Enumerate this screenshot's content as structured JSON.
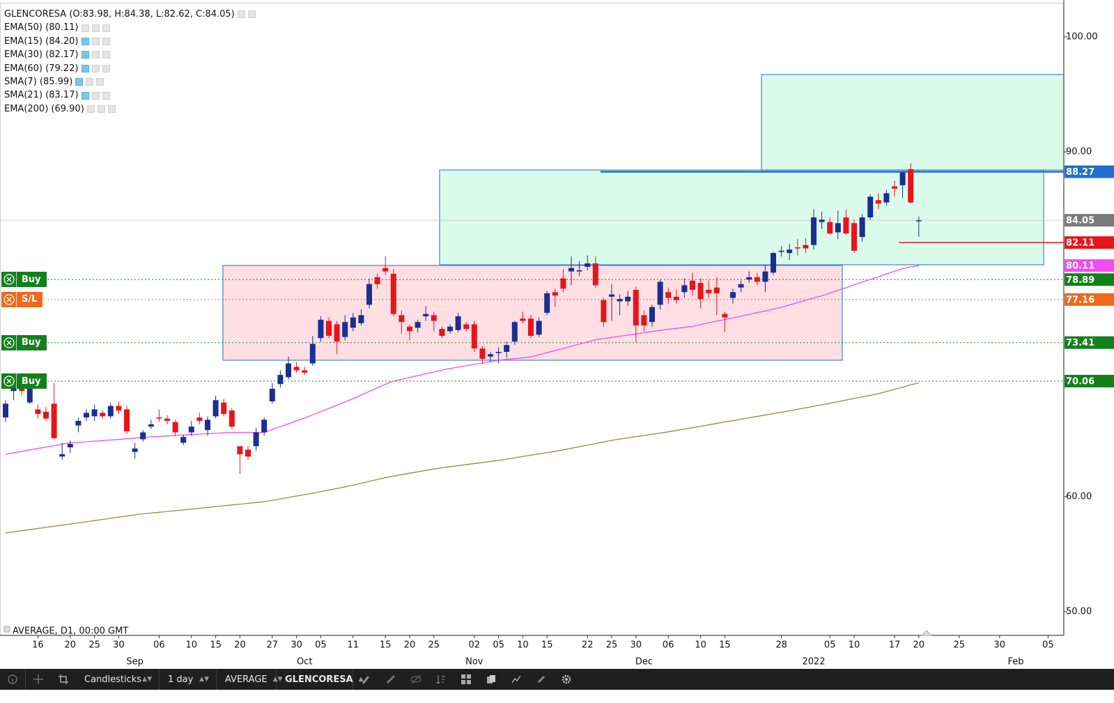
{
  "header": {
    "symbol_line": "GLENCORESA (O:83.98, H:84.38, L:82.62, C:84.05)",
    "indicators": [
      "EMA(50) (80.11)",
      "EMA(15) (84.20)",
      "EMA(30) (82.17)",
      "EMA(60) (79.22)",
      "SMA(7) (85.99)",
      "SMA(21) (83.17)",
      "EMA(200) (69.90)"
    ]
  },
  "chart_data": {
    "type": "candlestick",
    "categories": [
      null,
      null,
      null,
      null,
      "16",
      null,
      null,
      null,
      "20",
      null,
      null,
      "25",
      null,
      null,
      "30",
      null,
      null,
      null,
      null,
      "06",
      null,
      null,
      null,
      "10",
      null,
      null,
      "15",
      null,
      null,
      "20",
      null,
      null,
      null,
      "27",
      null,
      null,
      "30",
      null,
      null,
      "05",
      null,
      null,
      null,
      "11",
      null,
      null,
      null,
      "15",
      null,
      null,
      "20",
      null,
      null,
      "25",
      null,
      null,
      null,
      null,
      "02",
      null,
      null,
      "05",
      null,
      null,
      "10",
      null,
      null,
      "15",
      null,
      null,
      null,
      null,
      "22",
      null,
      null,
      "25",
      null,
      null,
      "30",
      null,
      null,
      null,
      "06",
      null,
      null,
      null,
      "10",
      null,
      null,
      "15",
      null,
      null,
      null,
      null,
      null,
      null,
      "28",
      null,
      null,
      null,
      null,
      null,
      "05",
      null,
      null,
      "10",
      null,
      null,
      null,
      null,
      "17",
      null,
      null,
      "20",
      null,
      null,
      null,
      null,
      "25",
      null,
      null,
      null,
      null,
      "30",
      null,
      null,
      null,
      null,
      null,
      "05"
    ],
    "month_labels": [
      null,
      null,
      null,
      null,
      null,
      null,
      null,
      null,
      null,
      null,
      null,
      null,
      null,
      null,
      null,
      null,
      "Sep",
      null,
      null,
      null,
      null,
      null,
      null,
      null,
      null,
      null,
      null,
      null,
      null,
      null,
      null,
      null,
      null,
      null,
      null,
      null,
      null,
      "Oct",
      null,
      null,
      null,
      null,
      null,
      null,
      null,
      null,
      null,
      null,
      null,
      null,
      null,
      null,
      null,
      null,
      null,
      null,
      null,
      null,
      "Nov",
      null,
      null,
      null,
      null,
      null,
      null,
      null,
      null,
      null,
      null,
      null,
      null,
      null,
      null,
      null,
      null,
      null,
      null,
      null,
      null,
      "Dec",
      null,
      null,
      null,
      null,
      null,
      null,
      null,
      null,
      null,
      null,
      null,
      null,
      null,
      null,
      null,
      null,
      null,
      null,
      null,
      null,
      "2022",
      null,
      null,
      null,
      null,
      null,
      null,
      null,
      null,
      null,
      null,
      null,
      null,
      null,
      null,
      null,
      null,
      null,
      null,
      null,
      null,
      null,
      null,
      null,
      null,
      "Feb",
      null,
      null,
      null,
      null
    ],
    "open": [
      66.9,
      69.2,
      69.5,
      68.2,
      67.6,
      67.4,
      68.1,
      63.5,
      64.3,
      66.2,
      66.9,
      67.0,
      67.3,
      67.0,
      67.9,
      67.6,
      63.9,
      65.0,
      66.1,
      66.9,
      66.8,
      66.5,
      64.7,
      65.6,
      66.9,
      65.8,
      67.0,
      68.2,
      67.5,
      64.4,
      64.1,
      64.4,
      65.6,
      68.3,
      69.8,
      70.4,
      71.3,
      71.0,
      71.6,
      73.8,
      75.3,
      75.0,
      73.9,
      74.7,
      75.1,
      76.7,
      79.1,
      79.9,
      79.4,
      75.8,
      74.8,
      74.7,
      75.7,
      75.8,
      74.6,
      74.4,
      74.5,
      75.0,
      75.0,
      72.9,
      72.2,
      72.5,
      72.6,
      73.5,
      75.5,
      75.5,
      74.1,
      76.0,
      77.8,
      79.0,
      79.6,
      79.6,
      80.0,
      80.3,
      77.1,
      77.4,
      77.0,
      77.0,
      78.0,
      75.8,
      75.2,
      76.7,
      77.8,
      77.4,
      77.8,
      78.8,
      78.6,
      78.0,
      78.2,
      75.9,
      77.3,
      78.2,
      78.9,
      79.1,
      78.7,
      79.5,
      81.3,
      81.2,
      81.7,
      81.9,
      81.9,
      83.9,
      83.9,
      83.0,
      84.3,
      83.8,
      82.6,
      84.3,
      85.8,
      85.6,
      87.0,
      87.1,
      88.5,
      83.98,
      null,
      null,
      null,
      null,
      null,
      null,
      null,
      null,
      null,
      null,
      null,
      null,
      null,
      null,
      null,
      null
    ],
    "high": [
      68.4,
      70.2,
      69.8,
      69.9,
      68.0,
      67.8,
      69.9,
      64.7,
      64.9,
      66.9,
      67.6,
      68.0,
      67.5,
      68.2,
      68.3,
      67.9,
      64.7,
      65.8,
      66.7,
      67.6,
      67.1,
      66.7,
      65.4,
      66.6,
      67.3,
      67.0,
      68.8,
      68.5,
      67.7,
      64.4,
      64.4,
      66.0,
      66.9,
      69.9,
      71.0,
      72.2,
      71.7,
      71.3,
      74.0,
      75.7,
      75.6,
      75.3,
      75.8,
      76.0,
      76.3,
      79.0,
      79.4,
      80.9,
      79.8,
      76.2,
      75.0,
      75.4,
      76.6,
      76.1,
      74.8,
      75.0,
      76.0,
      75.2,
      75.3,
      73.1,
      72.6,
      73.0,
      73.5,
      75.3,
      76.1,
      75.8,
      75.6,
      77.9,
      78.1,
      79.8,
      80.9,
      80.5,
      81.0,
      80.9,
      77.3,
      78.5,
      77.6,
      77.9,
      78.3,
      76.2,
      76.7,
      78.9,
      78.2,
      78.0,
      79.0,
      79.5,
      79.0,
      78.8,
      79.1,
      76.1,
      78.1,
      78.8,
      79.6,
      79.5,
      80.1,
      81.3,
      81.8,
      82.0,
      82.4,
      82.5,
      85.0,
      84.8,
      84.3,
      84.9,
      85.0,
      84.1,
      84.6,
      86.3,
      86.4,
      86.7,
      87.5,
      88.3,
      89.0,
      84.38,
      null,
      null,
      null,
      null,
      null,
      null,
      null,
      null,
      null,
      null,
      null,
      null,
      null,
      null,
      null,
      null
    ],
    "low": [
      66.5,
      68.4,
      68.8,
      68.1,
      66.8,
      66.6,
      65.0,
      63.2,
      63.8,
      65.6,
      66.6,
      66.6,
      66.8,
      66.8,
      67.2,
      65.5,
      63.3,
      64.8,
      65.9,
      66.5,
      66.3,
      65.3,
      64.5,
      65.3,
      66.3,
      65.3,
      66.8,
      67.0,
      65.9,
      62.0,
      63.2,
      64.0,
      65.3,
      68.1,
      69.5,
      70.2,
      70.8,
      70.6,
      71.4,
      73.5,
      73.8,
      72.4,
      73.6,
      74.4,
      74.9,
      76.4,
      78.1,
      79.3,
      75.7,
      74.2,
      73.6,
      74.3,
      75.3,
      74.4,
      73.8,
      74.2,
      74.3,
      74.4,
      72.6,
      71.6,
      71.7,
      71.6,
      72.1,
      73.2,
      75.1,
      73.8,
      73.9,
      75.8,
      76.5,
      77.8,
      78.4,
      79.2,
      79.7,
      78.2,
      74.8,
      75.3,
      75.8,
      76.6,
      73.4,
      74.4,
      74.8,
      76.3,
      76.8,
      76.8,
      77.3,
      77.5,
      76.4,
      77.3,
      75.8,
      74.3,
      76.8,
      77.8,
      78.6,
      78.4,
      77.8,
      79.3,
      80.9,
      80.6,
      81.0,
      81.2,
      81.5,
      83.3,
      82.8,
      82.4,
      82.8,
      81.2,
      82.2,
      84.1,
      85.0,
      85.3,
      86.1,
      86.0,
      85.5,
      82.62,
      null,
      null,
      null,
      null,
      null,
      null,
      null,
      null,
      null,
      null,
      null,
      null,
      null,
      null,
      null,
      null
    ],
    "close": [
      68.1,
      69.5,
      69.2,
      69.4,
      67.2,
      66.8,
      65.1,
      63.7,
      64.6,
      66.6,
      67.3,
      67.6,
      67.0,
      67.9,
      67.5,
      65.7,
      64.2,
      65.6,
      66.3,
      66.8,
      66.6,
      65.6,
      65.2,
      66.1,
      66.6,
      66.7,
      68.4,
      67.2,
      66.1,
      63.7,
      63.5,
      65.6,
      66.7,
      69.4,
      70.6,
      71.6,
      71.0,
      70.8,
      73.3,
      75.4,
      74.0,
      73.5,
      75.2,
      75.6,
      75.8,
      78.5,
      78.5,
      79.6,
      75.9,
      75.2,
      74.4,
      75.2,
      75.9,
      75.3,
      74.0,
      74.8,
      75.7,
      74.6,
      72.9,
      72.0,
      72.4,
      72.6,
      73.2,
      75.2,
      75.3,
      74.0,
      75.3,
      77.7,
      77.5,
      78.1,
      79.9,
      79.7,
      80.3,
      78.4,
      75.2,
      77.6,
      77.2,
      77.4,
      74.9,
      74.9,
      76.5,
      78.7,
      77.3,
      77.1,
      78.4,
      78.0,
      77.2,
      77.7,
      77.7,
      75.6,
      77.8,
      78.5,
      79.1,
      78.7,
      79.6,
      81.2,
      81.4,
      81.5,
      81.6,
      81.6,
      84.3,
      84.1,
      82.9,
      83.8,
      82.9,
      81.4,
      84.3,
      86.1,
      85.5,
      86.4,
      86.8,
      88.2,
      85.6,
      84.05,
      null,
      null,
      null,
      null,
      null,
      null,
      null,
      null,
      null,
      null,
      null,
      null,
      null,
      null,
      null,
      null
    ],
    "up_color": "#1a2f8f",
    "down_color": "#e8141c",
    "lines": [
      {
        "color": "#f04cf0",
        "values": [
          63.7,
          63.83,
          63.95,
          64.08,
          64.2,
          64.33,
          64.45,
          64.58,
          64.7,
          64.73,
          64.78,
          64.84,
          64.89,
          64.94,
          64.99,
          65.05,
          65.1,
          65.17,
          65.22,
          65.25,
          65.29,
          65.33,
          65.37,
          65.41,
          65.45,
          65.49,
          65.52,
          65.56,
          65.6,
          65.6,
          65.6,
          65.6,
          65.6,
          65.85,
          66.1,
          66.35,
          66.6,
          66.85,
          67.13,
          67.41,
          67.69,
          67.97,
          68.25,
          68.54,
          68.85,
          69.17,
          69.48,
          69.79,
          70.06,
          70.22,
          70.38,
          70.54,
          70.7,
          70.86,
          71.02,
          71.16,
          71.28,
          71.4,
          71.52,
          71.63,
          71.75,
          71.87,
          71.96,
          72.02,
          72.08,
          72.17,
          72.35,
          72.54,
          72.72,
          72.91,
          73.09,
          73.28,
          73.46,
          73.65,
          73.76,
          73.86,
          73.96,
          74.06,
          74.16,
          74.26,
          74.38,
          74.48,
          74.57,
          74.65,
          74.74,
          74.82,
          74.99,
          75.13,
          75.28,
          75.42,
          75.56,
          75.71,
          75.86,
          76.02,
          76.17,
          76.32,
          76.48,
          76.68,
          76.89,
          77.09,
          77.3,
          77.48,
          77.72,
          77.95,
          78.19,
          78.43,
          78.67,
          78.9,
          79.14,
          79.38,
          79.62,
          79.85,
          80.0,
          80.11,
          null,
          null,
          null,
          null,
          null,
          null,
          null,
          null,
          null,
          null,
          null,
          null,
          null,
          null,
          null,
          null
        ]
      },
      {
        "color": "#9c8b3c",
        "values": [
          56.85,
          56.95,
          57.05,
          57.14,
          57.24,
          57.34,
          57.44,
          57.53,
          57.63,
          57.73,
          57.83,
          57.93,
          58.03,
          58.13,
          58.23,
          58.33,
          58.43,
          58.52,
          58.58,
          58.65,
          58.72,
          58.79,
          58.86,
          58.93,
          59.0,
          59.07,
          59.15,
          59.22,
          59.29,
          59.36,
          59.43,
          59.5,
          59.57,
          59.69,
          59.81,
          59.94,
          60.06,
          60.18,
          60.31,
          60.45,
          60.59,
          60.72,
          60.86,
          61.01,
          61.17,
          61.34,
          61.5,
          61.66,
          61.8,
          61.93,
          62.05,
          62.17,
          62.29,
          62.41,
          62.53,
          62.62,
          62.71,
          62.8,
          62.89,
          62.98,
          63.07,
          63.16,
          63.27,
          63.39,
          63.51,
          63.62,
          63.73,
          63.84,
          63.95,
          64.08,
          64.22,
          64.36,
          64.49,
          64.63,
          64.77,
          64.91,
          65.02,
          65.12,
          65.23,
          65.33,
          65.44,
          65.54,
          65.65,
          65.77,
          65.89,
          66.01,
          66.13,
          66.26,
          66.38,
          66.5,
          66.62,
          66.75,
          66.87,
          66.99,
          67.11,
          67.23,
          67.35,
          67.48,
          67.61,
          67.74,
          67.87,
          68.0,
          68.13,
          68.27,
          68.41,
          68.55,
          68.69,
          68.83,
          68.97,
          69.16,
          69.35,
          69.54,
          69.73,
          69.9,
          null,
          null,
          null,
          null,
          null,
          null,
          null,
          null,
          null,
          null,
          null,
          null,
          null,
          null,
          null,
          null
        ]
      }
    ],
    "price_levels": [
      {
        "value": 88.27,
        "color": "#1e6fd0",
        "line": "solid"
      },
      {
        "value": 84.05,
        "color": "#7a7a7a",
        "line": "thin"
      },
      {
        "value": 82.11,
        "color": "#e8141c",
        "line": "short"
      },
      {
        "value": 80.11,
        "color": "#f04cf0",
        "line": "none"
      },
      {
        "value": 78.89,
        "color": "#13801c",
        "line": "dotted",
        "button": "Buy"
      },
      {
        "value": 77.16,
        "color": "#f06a1c",
        "line": "dotted",
        "button": "S/L"
      },
      {
        "value": 73.41,
        "color": "#13801c",
        "line": "dotted",
        "button": "Buy"
      },
      {
        "value": 70.06,
        "color": "#13801c",
        "line": "dotted",
        "button": "Buy"
      }
    ],
    "ylim": [
      47.94,
      103.21
    ],
    "yticks": [
      {
        "value": 50,
        "label": "50.00"
      },
      {
        "value": 60,
        "label": "60.00"
      },
      {
        "value": 90,
        "label": "90.00"
      },
      {
        "value": 100,
        "label": "100.00"
      }
    ]
  },
  "footer": {
    "info": "AVERAGE, D1, 00:00 GMT"
  },
  "toolbar": {
    "chart_type": "Candlesticks",
    "timeframe": "1 day",
    "source": "AVERAGE",
    "symbol": "GLENCORESA"
  }
}
